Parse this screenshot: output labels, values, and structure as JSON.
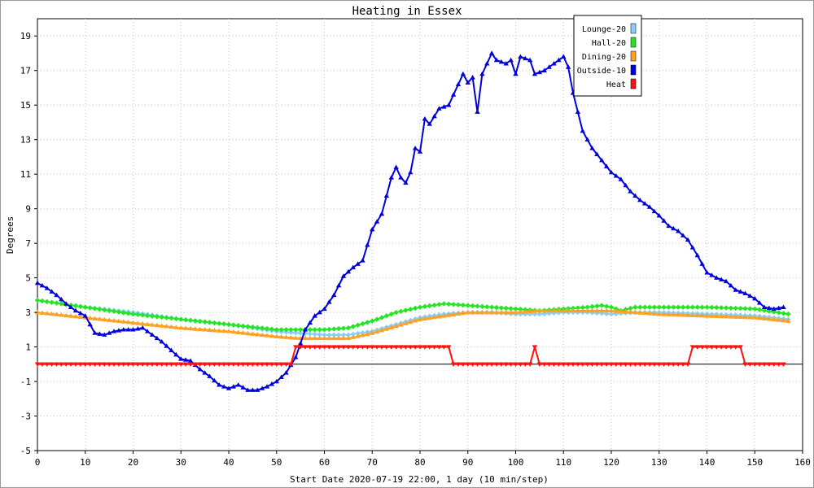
{
  "chart_data": {
    "type": "line",
    "title": "Heating in Essex",
    "xlabel": "Start Date 2020-07-19 22:00, 1 day (10 min/step)",
    "ylabel": "Degrees",
    "xlim": [
      0,
      160
    ],
    "ylim": [
      -5,
      20
    ],
    "xticks": [
      0,
      10,
      20,
      30,
      40,
      50,
      60,
      70,
      80,
      90,
      100,
      110,
      120,
      130,
      140,
      150,
      160
    ],
    "yticks": [
      -5,
      -3,
      -1,
      1,
      3,
      5,
      7,
      9,
      11,
      13,
      15,
      17,
      19
    ],
    "grid": true,
    "legend_position": "top-right",
    "series": [
      {
        "name": "Lounge-20",
        "color": "#87cefa",
        "marker": "diamond",
        "points": [
          [
            0,
            3.7
          ],
          [
            10,
            3.3
          ],
          [
            20,
            3.0
          ],
          [
            30,
            2.6
          ],
          [
            40,
            2.3
          ],
          [
            50,
            1.9
          ],
          [
            55,
            1.8
          ],
          [
            60,
            1.7
          ],
          [
            65,
            1.7
          ],
          [
            70,
            1.9
          ],
          [
            75,
            2.3
          ],
          [
            80,
            2.7
          ],
          [
            85,
            2.9
          ],
          [
            90,
            3.0
          ],
          [
            95,
            3.0
          ],
          [
            100,
            2.9
          ],
          [
            105,
            2.9
          ],
          [
            110,
            3.0
          ],
          [
            115,
            3.0
          ],
          [
            120,
            2.9
          ],
          [
            125,
            3.0
          ],
          [
            130,
            3.0
          ],
          [
            140,
            2.9
          ],
          [
            150,
            2.8
          ],
          [
            157,
            2.6
          ]
        ]
      },
      {
        "name": "Hall-20",
        "color": "#22e622",
        "marker": "diamond",
        "points": [
          [
            0,
            3.7
          ],
          [
            10,
            3.3
          ],
          [
            20,
            2.9
          ],
          [
            30,
            2.6
          ],
          [
            40,
            2.3
          ],
          [
            50,
            2.0
          ],
          [
            55,
            2.0
          ],
          [
            60,
            2.0
          ],
          [
            65,
            2.1
          ],
          [
            70,
            2.5
          ],
          [
            75,
            3.0
          ],
          [
            80,
            3.3
          ],
          [
            85,
            3.5
          ],
          [
            90,
            3.4
          ],
          [
            95,
            3.3
          ],
          [
            100,
            3.2
          ],
          [
            105,
            3.1
          ],
          [
            110,
            3.2
          ],
          [
            115,
            3.3
          ],
          [
            118,
            3.4
          ],
          [
            120,
            3.3
          ],
          [
            122,
            3.1
          ],
          [
            125,
            3.3
          ],
          [
            130,
            3.3
          ],
          [
            140,
            3.3
          ],
          [
            150,
            3.2
          ],
          [
            157,
            2.9
          ]
        ]
      },
      {
        "name": "Dining-20",
        "color": "#ffa020",
        "marker": "triangle",
        "points": [
          [
            0,
            3.0
          ],
          [
            10,
            2.7
          ],
          [
            20,
            2.4
          ],
          [
            30,
            2.1
          ],
          [
            40,
            1.9
          ],
          [
            50,
            1.6
          ],
          [
            55,
            1.5
          ],
          [
            60,
            1.5
          ],
          [
            65,
            1.5
          ],
          [
            70,
            1.8
          ],
          [
            75,
            2.2
          ],
          [
            80,
            2.6
          ],
          [
            85,
            2.8
          ],
          [
            90,
            3.0
          ],
          [
            95,
            3.0
          ],
          [
            100,
            3.0
          ],
          [
            105,
            3.1
          ],
          [
            110,
            3.1
          ],
          [
            115,
            3.1
          ],
          [
            120,
            3.1
          ],
          [
            125,
            3.0
          ],
          [
            130,
            2.9
          ],
          [
            140,
            2.8
          ],
          [
            150,
            2.7
          ],
          [
            157,
            2.5
          ]
        ]
      },
      {
        "name": "Outside-10",
        "color": "#0000dd",
        "marker": "triangle",
        "points": [
          [
            0,
            4.7
          ],
          [
            2,
            4.4
          ],
          [
            4,
            4.0
          ],
          [
            6,
            3.5
          ],
          [
            8,
            3.1
          ],
          [
            10,
            2.8
          ],
          [
            12,
            1.8
          ],
          [
            14,
            1.7
          ],
          [
            16,
            1.9
          ],
          [
            18,
            2.0
          ],
          [
            20,
            2.0
          ],
          [
            22,
            2.1
          ],
          [
            24,
            1.7
          ],
          [
            26,
            1.3
          ],
          [
            28,
            0.8
          ],
          [
            30,
            0.3
          ],
          [
            32,
            0.2
          ],
          [
            34,
            -0.3
          ],
          [
            36,
            -0.7
          ],
          [
            38,
            -1.2
          ],
          [
            40,
            -1.4
          ],
          [
            42,
            -1.2
          ],
          [
            44,
            -1.5
          ],
          [
            46,
            -1.5
          ],
          [
            48,
            -1.3
          ],
          [
            50,
            -1.0
          ],
          [
            52,
            -0.5
          ],
          [
            54,
            0.4
          ],
          [
            56,
            2.0
          ],
          [
            58,
            2.8
          ],
          [
            60,
            3.2
          ],
          [
            62,
            4.0
          ],
          [
            64,
            5.1
          ],
          [
            66,
            5.6
          ],
          [
            68,
            6.0
          ],
          [
            70,
            7.8
          ],
          [
            72,
            8.7
          ],
          [
            74,
            10.8
          ],
          [
            75,
            11.4
          ],
          [
            76,
            10.8
          ],
          [
            77,
            10.5
          ],
          [
            78,
            11.1
          ],
          [
            79,
            12.5
          ],
          [
            80,
            12.3
          ],
          [
            81,
            14.2
          ],
          [
            82,
            13.9
          ],
          [
            84,
            14.8
          ],
          [
            86,
            15.0
          ],
          [
            88,
            16.2
          ],
          [
            89,
            16.8
          ],
          [
            90,
            16.3
          ],
          [
            91,
            16.6
          ],
          [
            92,
            14.6
          ],
          [
            93,
            16.8
          ],
          [
            95,
            18.0
          ],
          [
            96,
            17.6
          ],
          [
            98,
            17.4
          ],
          [
            99,
            17.6
          ],
          [
            100,
            16.8
          ],
          [
            101,
            17.8
          ],
          [
            103,
            17.6
          ],
          [
            104,
            16.8
          ],
          [
            106,
            17.0
          ],
          [
            108,
            17.4
          ],
          [
            109,
            17.6
          ],
          [
            110,
            17.8
          ],
          [
            111,
            17.2
          ],
          [
            112,
            15.7
          ],
          [
            114,
            13.5
          ],
          [
            116,
            12.5
          ],
          [
            118,
            11.8
          ],
          [
            120,
            11.1
          ],
          [
            122,
            10.7
          ],
          [
            124,
            10.0
          ],
          [
            126,
            9.5
          ],
          [
            128,
            9.1
          ],
          [
            130,
            8.6
          ],
          [
            132,
            8.0
          ],
          [
            134,
            7.7
          ],
          [
            136,
            7.2
          ],
          [
            138,
            6.3
          ],
          [
            140,
            5.3
          ],
          [
            142,
            5.0
          ],
          [
            144,
            4.8
          ],
          [
            146,
            4.3
          ],
          [
            148,
            4.1
          ],
          [
            150,
            3.8
          ],
          [
            152,
            3.3
          ],
          [
            154,
            3.2
          ],
          [
            156,
            3.3
          ]
        ]
      },
      {
        "name": "Heat",
        "color": "#ff1010",
        "marker": "triangle-down",
        "points": [
          [
            0,
            0
          ],
          [
            53,
            0
          ],
          [
            54,
            1
          ],
          [
            86,
            1
          ],
          [
            87,
            0
          ],
          [
            103,
            0
          ],
          [
            104,
            1
          ],
          [
            105,
            0
          ],
          [
            136,
            0
          ],
          [
            137,
            1
          ],
          [
            147,
            1
          ],
          [
            148,
            0
          ],
          [
            156,
            0
          ]
        ]
      }
    ]
  }
}
